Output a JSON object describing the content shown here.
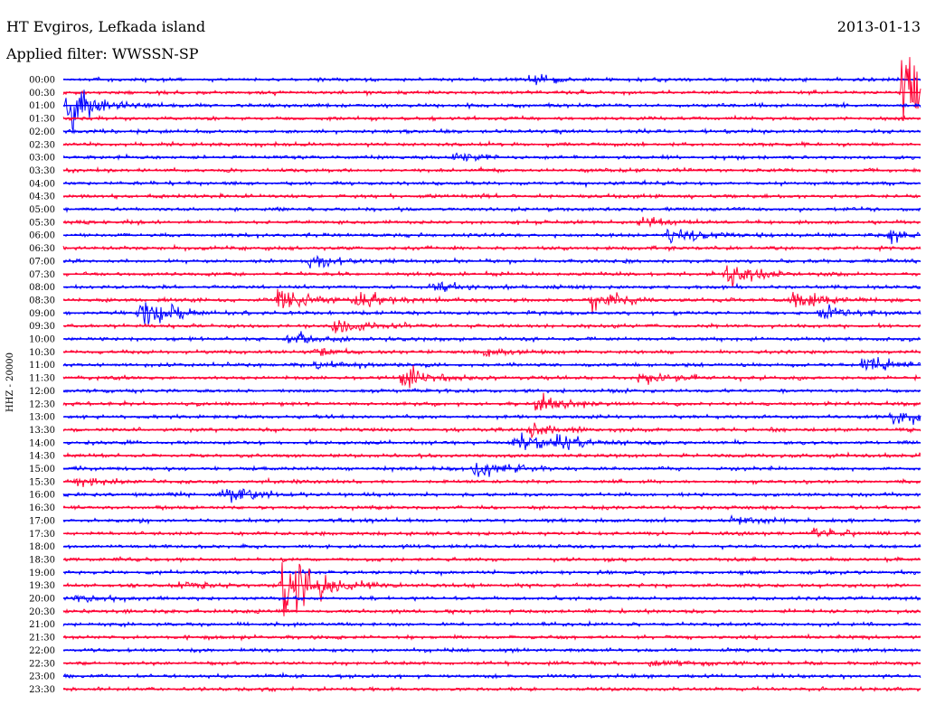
{
  "header": {
    "station": "HT Evgiros, Lefkada island",
    "filter": "Applied filter: WWSSN-SP",
    "date": "2013-01-13"
  },
  "chart_data": {
    "type": "line",
    "title": "HT Evgiros, Lefkada island",
    "subtitle": "Applied filter: WWSSN-SP",
    "date": "2013-01-13",
    "ylabel": "HHZ - 20000",
    "row_labels": [
      "00:00",
      "00:30",
      "01:00",
      "01:30",
      "02:00",
      "02:30",
      "03:00",
      "03:30",
      "04:00",
      "04:30",
      "05:00",
      "05:30",
      "06:00",
      "06:30",
      "07:00",
      "07:30",
      "08:00",
      "08:30",
      "09:00",
      "09:30",
      "10:00",
      "10:30",
      "11:00",
      "11:30",
      "12:00",
      "12:30",
      "13:00",
      "13:30",
      "14:00",
      "14:30",
      "15:00",
      "15:30",
      "16:00",
      "16:30",
      "17:00",
      "17:30",
      "18:00",
      "18:30",
      "19:00",
      "19:30",
      "20:00",
      "20:30",
      "21:00",
      "21:30",
      "22:00",
      "22:30",
      "23:00",
      "23:30"
    ],
    "series_colors": [
      "#0000ff",
      "#ff0033"
    ],
    "events": [
      {
        "row": "00:00",
        "minute": 16.3,
        "amplitude": 1.0
      },
      {
        "row": "00:30",
        "minute": 29.4,
        "amplitude": 9.0
      },
      {
        "row": "01:00",
        "minute": 0.2,
        "amplitude": 5.0
      },
      {
        "row": "03:00",
        "minute": 13.6,
        "amplitude": 0.8
      },
      {
        "row": "05:30",
        "minute": 20.2,
        "amplitude": 0.8
      },
      {
        "row": "06:00",
        "minute": 21.2,
        "amplitude": 2.0
      },
      {
        "row": "06:00",
        "minute": 28.9,
        "amplitude": 1.3
      },
      {
        "row": "07:00",
        "minute": 8.6,
        "amplitude": 1.3
      },
      {
        "row": "07:30",
        "minute": 23.2,
        "amplitude": 2.5
      },
      {
        "row": "08:00",
        "minute": 12.9,
        "amplitude": 1.0
      },
      {
        "row": "08:30",
        "minute": 7.5,
        "amplitude": 2.5
      },
      {
        "row": "08:30",
        "minute": 10.3,
        "amplitude": 1.8
      },
      {
        "row": "08:30",
        "minute": 18.5,
        "amplitude": 2.0
      },
      {
        "row": "08:30",
        "minute": 25.5,
        "amplitude": 2.0
      },
      {
        "row": "09:00",
        "minute": 2.7,
        "amplitude": 3.0
      },
      {
        "row": "09:00",
        "minute": 26.5,
        "amplitude": 1.3
      },
      {
        "row": "09:30",
        "minute": 9.5,
        "amplitude": 1.3
      },
      {
        "row": "10:00",
        "minute": 7.8,
        "amplitude": 1.3
      },
      {
        "row": "10:30",
        "minute": 8.8,
        "amplitude": 1.0
      },
      {
        "row": "10:30",
        "minute": 14.8,
        "amplitude": 1.0
      },
      {
        "row": "11:00",
        "minute": 8.9,
        "amplitude": 1.0
      },
      {
        "row": "11:00",
        "minute": 28.0,
        "amplitude": 1.8
      },
      {
        "row": "11:30",
        "minute": 11.9,
        "amplitude": 2.5
      },
      {
        "row": "11:30",
        "minute": 20.2,
        "amplitude": 1.3
      },
      {
        "row": "12:30",
        "minute": 16.6,
        "amplitude": 2.0
      },
      {
        "row": "13:00",
        "minute": 29.0,
        "amplitude": 1.8
      },
      {
        "row": "13:30",
        "minute": 16.3,
        "amplitude": 1.3
      },
      {
        "row": "14:00",
        "minute": 15.8,
        "amplitude": 2.0
      },
      {
        "row": "14:00",
        "minute": 17.3,
        "amplitude": 1.5
      },
      {
        "row": "15:00",
        "minute": 14.4,
        "amplitude": 2.5
      },
      {
        "row": "15:30",
        "minute": 0.5,
        "amplitude": 0.8
      },
      {
        "row": "16:00",
        "minute": 5.6,
        "amplitude": 2.0
      },
      {
        "row": "17:00",
        "minute": 23.4,
        "amplitude": 0.8
      },
      {
        "row": "17:30",
        "minute": 26.3,
        "amplitude": 0.8
      },
      {
        "row": "19:30",
        "minute": 7.7,
        "amplitude": 10.0
      },
      {
        "row": "19:30",
        "minute": 3.9,
        "amplitude": 0.8
      },
      {
        "row": "20:00",
        "minute": 0.5,
        "amplitude": 0.6
      },
      {
        "row": "22:30",
        "minute": 20.6,
        "amplitude": 0.9
      }
    ]
  }
}
